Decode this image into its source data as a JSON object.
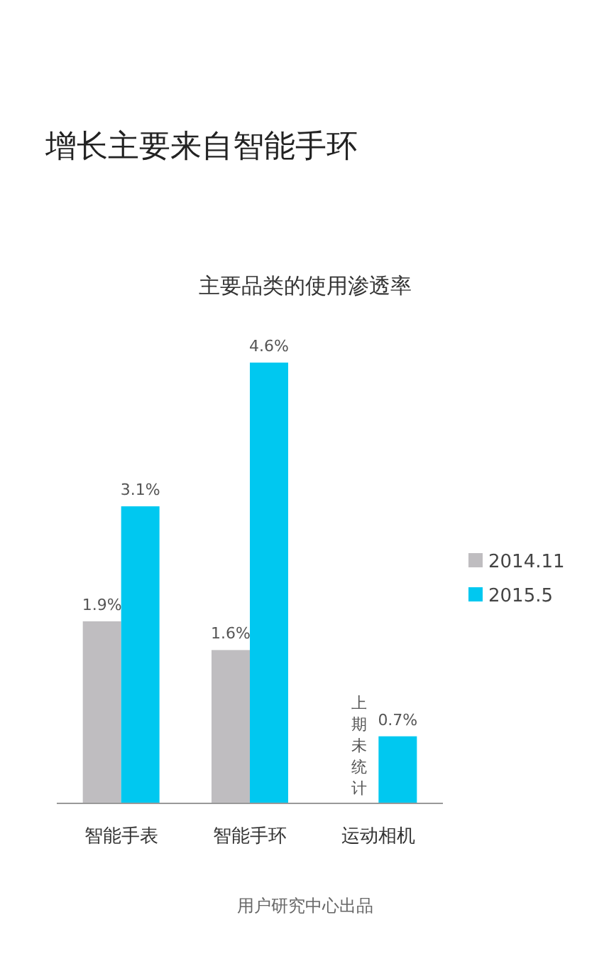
{
  "chart_data": {
    "type": "bar",
    "title": "增长主要来自智能手环",
    "subtitle": "主要品类的使用渗透率",
    "categories": [
      "智能手表",
      "智能手环",
      "运动相机"
    ],
    "series": [
      {
        "name": "2014.11",
        "color": "#bfbdc0",
        "values": [
          1.9,
          1.6,
          null
        ],
        "value_labels": [
          "1.9%",
          "1.6%",
          null
        ]
      },
      {
        "name": "2015.5",
        "color": "#00c8f0",
        "values": [
          3.1,
          4.6,
          0.7
        ],
        "value_labels": [
          "3.1%",
          "4.6%",
          "0.7%"
        ]
      }
    ],
    "legend": "right",
    "annotations": [
      {
        "text": "上期未统计",
        "x": "运动相机"
      },
      "用户研究中心出品"
    ]
  }
}
